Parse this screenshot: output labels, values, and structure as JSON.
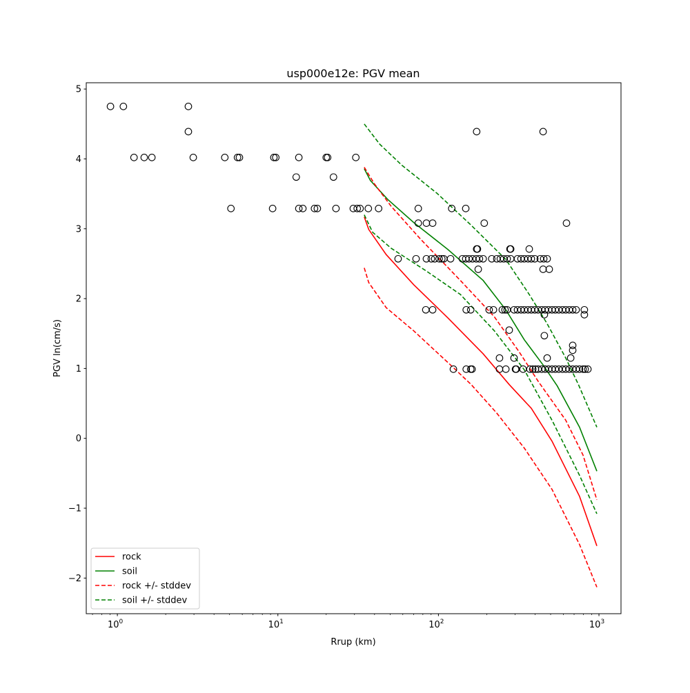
{
  "chart_data": {
    "type": "scatter",
    "title": "usp000e12e: PGV mean",
    "xlabel": "Rrup (km)",
    "ylabel": "PGV ln(cm/s)",
    "xscale": "log",
    "xlim": [
      0.64,
      1372
    ],
    "ylim": [
      -2.51,
      5.09
    ],
    "xticks": [
      {
        "value": 1,
        "base": "10",
        "exp": "0"
      },
      {
        "value": 10,
        "base": "10",
        "exp": "1"
      },
      {
        "value": 100,
        "base": "10",
        "exp": "2"
      },
      {
        "value": 1000,
        "base": "10",
        "exp": "3"
      }
    ],
    "yticks": [
      {
        "value": 5,
        "label": "5"
      },
      {
        "value": 4,
        "label": "4"
      },
      {
        "value": 3,
        "label": "3"
      },
      {
        "value": 2,
        "label": "2"
      },
      {
        "value": 1,
        "label": "1"
      },
      {
        "value": 0,
        "label": "0"
      },
      {
        "value": -1,
        "label": "−1"
      },
      {
        "value": -2,
        "label": "−2"
      }
    ],
    "grid": false,
    "legend_position": "lower-left",
    "observations": [
      {
        "y": 4.75,
        "x": [
          0.906,
          1.09,
          2.77
        ]
      },
      {
        "y": 4.39,
        "x": [
          2.77,
          173,
          449
        ]
      },
      {
        "y": 4.02,
        "x": [
          1.27,
          1.47,
          1.64,
          2.97,
          4.67,
          5.6,
          5.76,
          9.44,
          9.7,
          13.5,
          20.0,
          20.4,
          30.6
        ]
      },
      {
        "y": 3.74,
        "x": [
          13.0,
          22.2
        ]
      },
      {
        "y": 3.29,
        "x": [
          5.1,
          9.27,
          13.5,
          14.3,
          16.9,
          17.6,
          23.0,
          29.5,
          31.2,
          32.5,
          36.6,
          42.4,
          74.9,
          121,
          148
        ]
      },
      {
        "y": 3.08,
        "x": [
          74.9,
          84.2,
          92.0,
          193,
          628
        ]
      },
      {
        "y": 2.71,
        "x": [
          173,
          175,
          279,
          282,
          368
        ]
      },
      {
        "y": 2.57,
        "x": [
          56.1,
          72.6,
          84.2,
          90.3,
          94.8,
          101,
          105,
          108,
          119,
          141,
          148,
          155,
          163,
          172,
          180,
          190,
          215,
          231,
          243,
          255,
          268,
          282,
          311,
          327,
          343,
          361,
          379,
          398,
          431,
          453,
          476
        ]
      },
      {
        "y": 2.42,
        "x": [
          177,
          449,
          490
        ]
      },
      {
        "y": 1.84,
        "x": [
          83.4,
          92.0,
          149,
          159,
          207,
          220,
          250,
          260,
          268,
          296,
          311,
          327,
          343,
          361,
          379,
          398,
          418,
          440,
          462,
          485,
          510,
          535,
          562,
          592,
          621,
          653,
          686,
          721,
          811
        ]
      },
      {
        "y": 1.77,
        "x": [
          457,
          811
        ]
      },
      {
        "y": 1.55,
        "x": [
          276
        ]
      },
      {
        "y": 1.47,
        "x": [
          457
        ]
      },
      {
        "y": 1.33,
        "x": [
          686
        ]
      },
      {
        "y": 1.26,
        "x": [
          686
        ]
      },
      {
        "y": 1.15,
        "x": [
          240,
          296,
          476,
          667
        ]
      },
      {
        "y": 0.99,
        "x": [
          124,
          149,
          159,
          162,
          240,
          263,
          302,
          305,
          337,
          372,
          387,
          402,
          418,
          440,
          462,
          485,
          510,
          535,
          562,
          592,
          621,
          653,
          686,
          721,
          757,
          796,
          820,
          853
        ]
      }
    ],
    "series": [
      {
        "name": "rock",
        "color": "#ff0000",
        "dash": false,
        "x": [
          34.5,
          36.8,
          47.3,
          70.1,
          115,
          190,
          276,
          379,
          510,
          757,
          970
        ],
        "y": [
          3.17,
          2.99,
          2.63,
          2.2,
          1.72,
          1.21,
          0.77,
          0.43,
          -0.04,
          -0.83,
          -1.54
        ]
      },
      {
        "name": "soil",
        "color": "#008000",
        "dash": false,
        "x": [
          34.5,
          37.7,
          48.3,
          70.1,
          115,
          190,
          263,
          343,
          449,
          550,
          757,
          970
        ],
        "y": [
          3.86,
          3.69,
          3.42,
          3.09,
          2.7,
          2.26,
          1.84,
          1.41,
          1.05,
          0.75,
          0.16,
          -0.47
        ]
      },
      {
        "name": "rock +/- stddev",
        "color": "#ff0000",
        "dash": true,
        "legend": true,
        "x": [
          34.5,
          40.0,
          50.8,
          77.5,
          137,
          223,
          318,
          417,
          621,
          796,
          970
        ],
        "y": [
          3.88,
          3.64,
          3.32,
          2.85,
          2.26,
          1.74,
          1.24,
          0.82,
          0.26,
          -0.24,
          -0.88
        ]
      },
      {
        "name": "rock - stddev",
        "color": "#ff0000",
        "dash": true,
        "legend": false,
        "x": [
          34.5,
          36.8,
          47.3,
          70.1,
          119,
          160,
          231,
          343,
          510,
          757,
          970
        ],
        "y": [
          2.44,
          2.23,
          1.87,
          1.54,
          1.05,
          0.77,
          0.36,
          -0.14,
          -0.73,
          -1.52,
          -2.13
        ]
      },
      {
        "name": "soil +/- stddev",
        "color": "#008000",
        "dash": true,
        "legend": true,
        "x": [
          34.5,
          43.1,
          59.2,
          97.8,
          160,
          263,
          368,
          476,
          621,
          745,
          970
        ],
        "y": [
          4.5,
          4.21,
          3.91,
          3.51,
          3.05,
          2.56,
          2.06,
          1.64,
          1.15,
          0.77,
          0.16
        ]
      },
      {
        "name": "soil - stddev",
        "color": "#008000",
        "dash": true,
        "legend": false,
        "x": [
          34.5,
          38.9,
          50.8,
          83.4,
          137,
          223,
          343,
          510,
          757,
          970
        ],
        "y": [
          3.2,
          2.95,
          2.72,
          2.4,
          2.06,
          1.54,
          0.98,
          0.26,
          -0.53,
          -1.08
        ]
      }
    ],
    "legend": [
      "rock",
      "soil",
      "rock +/- stddev",
      "soil +/- stddev"
    ]
  }
}
